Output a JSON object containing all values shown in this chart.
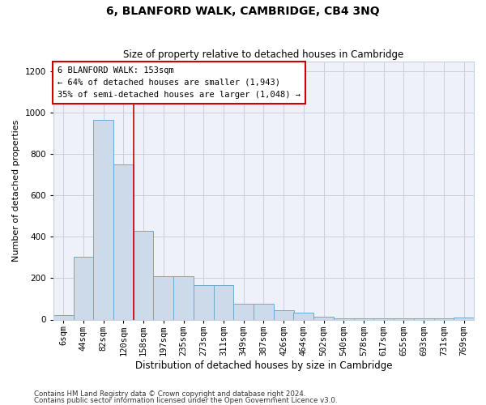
{
  "title": "6, BLANFORD WALK, CAMBRIDGE, CB4 3NQ",
  "subtitle": "Size of property relative to detached houses in Cambridge",
  "xlabel": "Distribution of detached houses by size in Cambridge",
  "ylabel": "Number of detached properties",
  "footnote1": "Contains HM Land Registry data © Crown copyright and database right 2024.",
  "footnote2": "Contains public sector information licensed under the Open Government Licence v3.0.",
  "annotation_line1": "6 BLANFORD WALK: 153sqm",
  "annotation_line2": "← 64% of detached houses are smaller (1,943)",
  "annotation_line3": "35% of semi-detached houses are larger (1,048) →",
  "bar_color": "#ccdaea",
  "bar_edge_color": "#6aaad4",
  "vline_color": "#cc0000",
  "vline_x": 3.5,
  "categories": [
    "6sqm",
    "44sqm",
    "82sqm",
    "120sqm",
    "158sqm",
    "197sqm",
    "235sqm",
    "273sqm",
    "311sqm",
    "349sqm",
    "387sqm",
    "426sqm",
    "464sqm",
    "502sqm",
    "540sqm",
    "578sqm",
    "617sqm",
    "655sqm",
    "693sqm",
    "731sqm",
    "769sqm"
  ],
  "values": [
    20,
    305,
    965,
    750,
    430,
    210,
    210,
    165,
    165,
    75,
    75,
    45,
    35,
    15,
    5,
    5,
    5,
    5,
    5,
    5,
    10
  ],
  "ylim": [
    0,
    1250
  ],
  "yticks": [
    0,
    200,
    400,
    600,
    800,
    1000,
    1200
  ],
  "plot_bg_color": "#eef2f8",
  "grid_color": "#c8d0df",
  "annotation_box_color": "#ffffff",
  "annotation_box_edge": "#cc0000",
  "title_fontsize": 10,
  "subtitle_fontsize": 8.5,
  "ylabel_fontsize": 8,
  "xlabel_fontsize": 8.5,
  "tick_fontsize": 7.5
}
